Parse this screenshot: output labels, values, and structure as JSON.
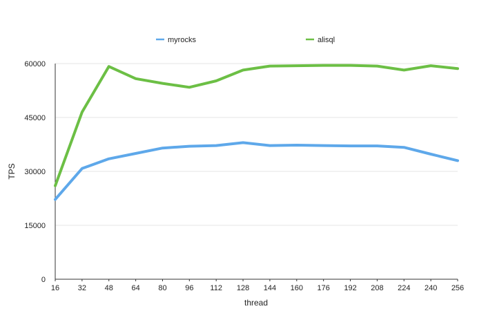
{
  "chart_data": {
    "type": "line",
    "xlabel": "thread",
    "ylabel": "TPS",
    "x": [
      16,
      32,
      48,
      64,
      80,
      96,
      112,
      128,
      144,
      160,
      176,
      192,
      208,
      224,
      240,
      256
    ],
    "ylim": [
      0,
      60000
    ],
    "yticks": [
      0,
      15000,
      30000,
      45000,
      60000
    ],
    "grid": true,
    "legend_position": "top",
    "series": [
      {
        "name": "myrocks",
        "color": "#5ea8ea",
        "values": [
          22200,
          30800,
          33500,
          35000,
          36500,
          37000,
          37200,
          38000,
          37200,
          37300,
          37200,
          37100,
          37100,
          36700,
          34800,
          33000
        ]
      },
      {
        "name": "alisql",
        "color": "#6cbf45",
        "values": [
          26000,
          46500,
          59200,
          55800,
          54500,
          53400,
          55200,
          58200,
          59300,
          59400,
          59500,
          59500,
          59300,
          58200,
          59400,
          58600
        ]
      }
    ]
  }
}
